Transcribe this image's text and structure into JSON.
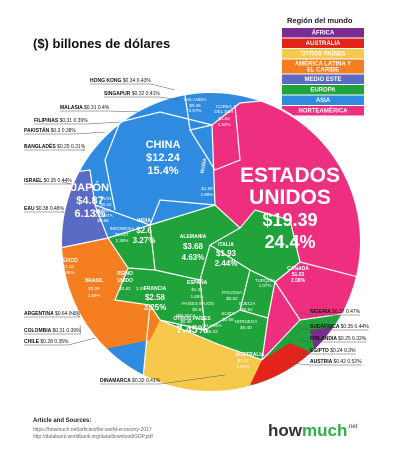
{
  "title": "($) billones de dólares",
  "legend": {
    "title": "Región del mundo",
    "items": [
      {
        "label": "ÁFRICA",
        "color": "#7b2c8f"
      },
      {
        "label": "AUSTRALIA",
        "color": "#e3241b"
      },
      {
        "label": "OTROS PAÍSES",
        "color": "#f6c84c"
      },
      {
        "label": "AMÉRICA LATINA Y EL CARIBE",
        "color": "#f57f20"
      },
      {
        "label": "MEDIO ESTE",
        "color": "#5b6ac4"
      },
      {
        "label": "EUROPA",
        "color": "#1fa33a"
      },
      {
        "label": "ASIA",
        "color": "#2f8be0"
      },
      {
        "label": "NORTEAMÉRICA",
        "color": "#ee2f7f"
      }
    ]
  },
  "chart_data": {
    "type": "voronoi-treemap",
    "unit": "$ billones de dólares",
    "countries": [
      {
        "name": "ESTADOS UNIDOS",
        "value": "$19.39",
        "share": "24.4%",
        "region": "NORTEAMÉRICA"
      },
      {
        "name": "CHINA",
        "value": "$12.24",
        "share": "15.4%",
        "region": "ASIA"
      },
      {
        "name": "JAPÓN",
        "value": "$4.87",
        "share": "6.13%",
        "region": "ASIA"
      },
      {
        "name": "ALEMANIA",
        "value": "$3.68",
        "share": "4.63%",
        "region": "EUROPA"
      },
      {
        "name": "REINO UNIDO",
        "value": "$2.62",
        "share": "3.3%",
        "region": "EUROPA"
      },
      {
        "name": "INDIA",
        "value": "$2.6",
        "share": "3.27%",
        "region": "ASIA"
      },
      {
        "name": "FRANCIA",
        "value": "$2.58",
        "share": "3.25%",
        "region": "EUROPA"
      },
      {
        "name": "BRASIL",
        "value": "$2.06",
        "share": "2.59%",
        "region": "AMÉRICA LATINA Y EL CARIBE"
      },
      {
        "name": "ITALIA",
        "value": "$1.93",
        "share": "2.44%",
        "region": "EUROPA"
      },
      {
        "name": "CANADÁ",
        "value": "$1.65",
        "share": "2.08%",
        "region": "NORTEAMÉRICA"
      },
      {
        "name": "RUSIA",
        "value": "$1.58",
        "share": "1.99%",
        "region": "ASIA"
      },
      {
        "name": "COREA DEL SUR",
        "value": "$1.53",
        "share": "1.93%",
        "region": "ASIA"
      },
      {
        "name": "AUSTRALIA",
        "value": "$1.32",
        "share": "1.67%",
        "region": "AUSTRALIA"
      },
      {
        "name": "ESPAÑA",
        "value": "$1.31",
        "share": "1.65%",
        "region": "EUROPA"
      },
      {
        "name": "MÉXICO",
        "value": "$1.15",
        "share": "1.45%",
        "region": "AMÉRICA LATINA Y EL CARIBE"
      },
      {
        "name": "INDONESIA",
        "value": "$1.02T",
        "share": "1.28%",
        "region": "ASIA"
      },
      {
        "name": "TURQUÍA",
        "value": "$0.85",
        "share": "1.07%",
        "region": "EUROPA"
      },
      {
        "name": "PAÍSES BAJOS",
        "value": "$0.83",
        "share": "1.04%",
        "region": "EUROPA"
      },
      {
        "name": "ARABIA SAUDITA",
        "value": "$0.68",
        "share": "0.86%",
        "region": "MEDIO ESTE"
      },
      {
        "name": "SUIZA",
        "value": "$0.68",
        "share": "0.86%",
        "region": "EUROPA"
      },
      {
        "name": "ARGENTINA",
        "value": "$0.64",
        "share": "0.8%",
        "region": "AMÉRICA LATINA Y EL CARIBE"
      },
      {
        "name": "SUECIA",
        "value": "$0.54",
        "share": "0.68%",
        "region": "EUROPA"
      },
      {
        "name": "POLONIA",
        "value": "$0.52",
        "share": "0.66%",
        "region": "EUROPA"
      },
      {
        "name": "BÉLGICA",
        "value": "$0.49",
        "share": "0.62%",
        "region": "EUROPA"
      },
      {
        "name": "TAILANDIA",
        "value": "$0.45",
        "share": "0.57%",
        "region": "ASIA"
      },
      {
        "name": "IRÁN",
        "value": "$0.44",
        "share": "0.55%",
        "region": "MEDIO ESTE"
      },
      {
        "name": "AUSTRIA",
        "value": "$0.42",
        "share": "0.52%",
        "region": "EUROPA"
      },
      {
        "name": "NORUEGA",
        "value": "$0.40",
        "share": "0.5%",
        "region": "EUROPA"
      },
      {
        "name": "NIGERIA",
        "value": "$0.37",
        "share": "0.47%",
        "region": "ÁFRICA"
      },
      {
        "name": "ISRAEL",
        "value": "$0.35",
        "share": "0.44%",
        "region": "MEDIO ESTE"
      },
      {
        "name": "SUDÁFRICA",
        "value": "$0.35",
        "share": "0.44%",
        "region": "ÁFRICA"
      },
      {
        "name": "HONG KONG",
        "value": "$0.34",
        "share": "0.43%",
        "region": "ASIA"
      },
      {
        "name": "IRLANDA",
        "value": "$0.33",
        "share": "0.42%",
        "region": "EUROPA"
      },
      {
        "name": "DINAMARCA",
        "value": "$0.32",
        "share": "0.41%",
        "region": "EUROPA"
      },
      {
        "name": "SINGAPUR",
        "value": "$0.32",
        "share": "0.41%",
        "region": "ASIA"
      },
      {
        "name": "MALASIA",
        "value": "$0.31",
        "share": "0.4%",
        "region": "ASIA"
      },
      {
        "name": "FILIPINAS",
        "value": "$0.31",
        "share": "0.39%",
        "region": "ASIA"
      },
      {
        "name": "COLOMBIA",
        "value": "$0.31",
        "share": "0.39%",
        "region": "AMÉRICA LATINA Y EL CARIBE"
      },
      {
        "name": "PAKISTÁN",
        "value": "$0.3",
        "share": "0.38%",
        "region": "ASIA"
      },
      {
        "name": "EAU",
        "value": "$0.38",
        "share": "0.48%",
        "region": "MEDIO ESTE"
      },
      {
        "name": "CHILE",
        "value": "$0.28",
        "share": "0.35%",
        "region": "AMÉRICA LATINA Y EL CARIBE"
      },
      {
        "name": "FINLANDIA",
        "value": "$0.25",
        "share": "0.32%",
        "region": "EUROPA"
      },
      {
        "name": "BANGLADÉS",
        "value": "$0.25",
        "share": "0.31%",
        "region": "ASIA"
      },
      {
        "name": "EGIPTO",
        "value": "$0.24",
        "share": "0.3%",
        "region": "ÁFRICA"
      },
      {
        "name": "OTROS PAÍSES",
        "value": "",
        "share": "7.45%",
        "region": "OTROS PAÍSES"
      }
    ],
    "outer_labels": [
      {
        "name": "HONG KONG",
        "value": "$0.34",
        "share": "0.43%"
      },
      {
        "name": "SINGAPUR",
        "value": "$0.32",
        "share": "0.41%"
      },
      {
        "name": "MALASIA",
        "value": "$0.31",
        "share": "0.4%"
      },
      {
        "name": "FILIPINAS",
        "value": "$0.31",
        "share": "0.39%"
      },
      {
        "name": "PAKISTÁN",
        "value": "$0.3",
        "share": "0.38%"
      },
      {
        "name": "BANGLADÉS",
        "value": "$0.25",
        "share": "0.31%"
      },
      {
        "name": "ISRAEL",
        "value": "$0.35",
        "share": "0.44%"
      },
      {
        "name": "EAU",
        "value": "$0.38",
        "share": "0.48%"
      },
      {
        "name": "ARGENTINA",
        "value": "$0.64",
        "share": "0.8%"
      },
      {
        "name": "COLOMBIA",
        "value": "$0.31",
        "share": "0.39%"
      },
      {
        "name": "CHILE",
        "value": "$0.28",
        "share": "0.35%"
      },
      {
        "name": "DINAMARCA",
        "value": "$0.32",
        "share": "0.41%"
      },
      {
        "name": "NIGERIA",
        "value": "$0.37",
        "share": "0.47%"
      },
      {
        "name": "SUDÁFRICA",
        "value": "$0.35",
        "share": "0.44%"
      },
      {
        "name": "FINLANDIA",
        "value": "$0.25",
        "share": "0.32%"
      },
      {
        "name": "EGIPTO",
        "value": "$0.24",
        "share": "0.3%"
      },
      {
        "name": "AUSTRIA",
        "value": "$0.42",
        "share": "0.52%"
      }
    ]
  },
  "footer": {
    "heading": "Article and Sources:",
    "line1": "https://howmuch.net/articles/the-world-economy-2017",
    "line2": "http://databank.worldbank.org/data/download/GDP.pdf"
  },
  "logo": {
    "part1": "how",
    "part2": "much",
    "part3": ".net"
  }
}
